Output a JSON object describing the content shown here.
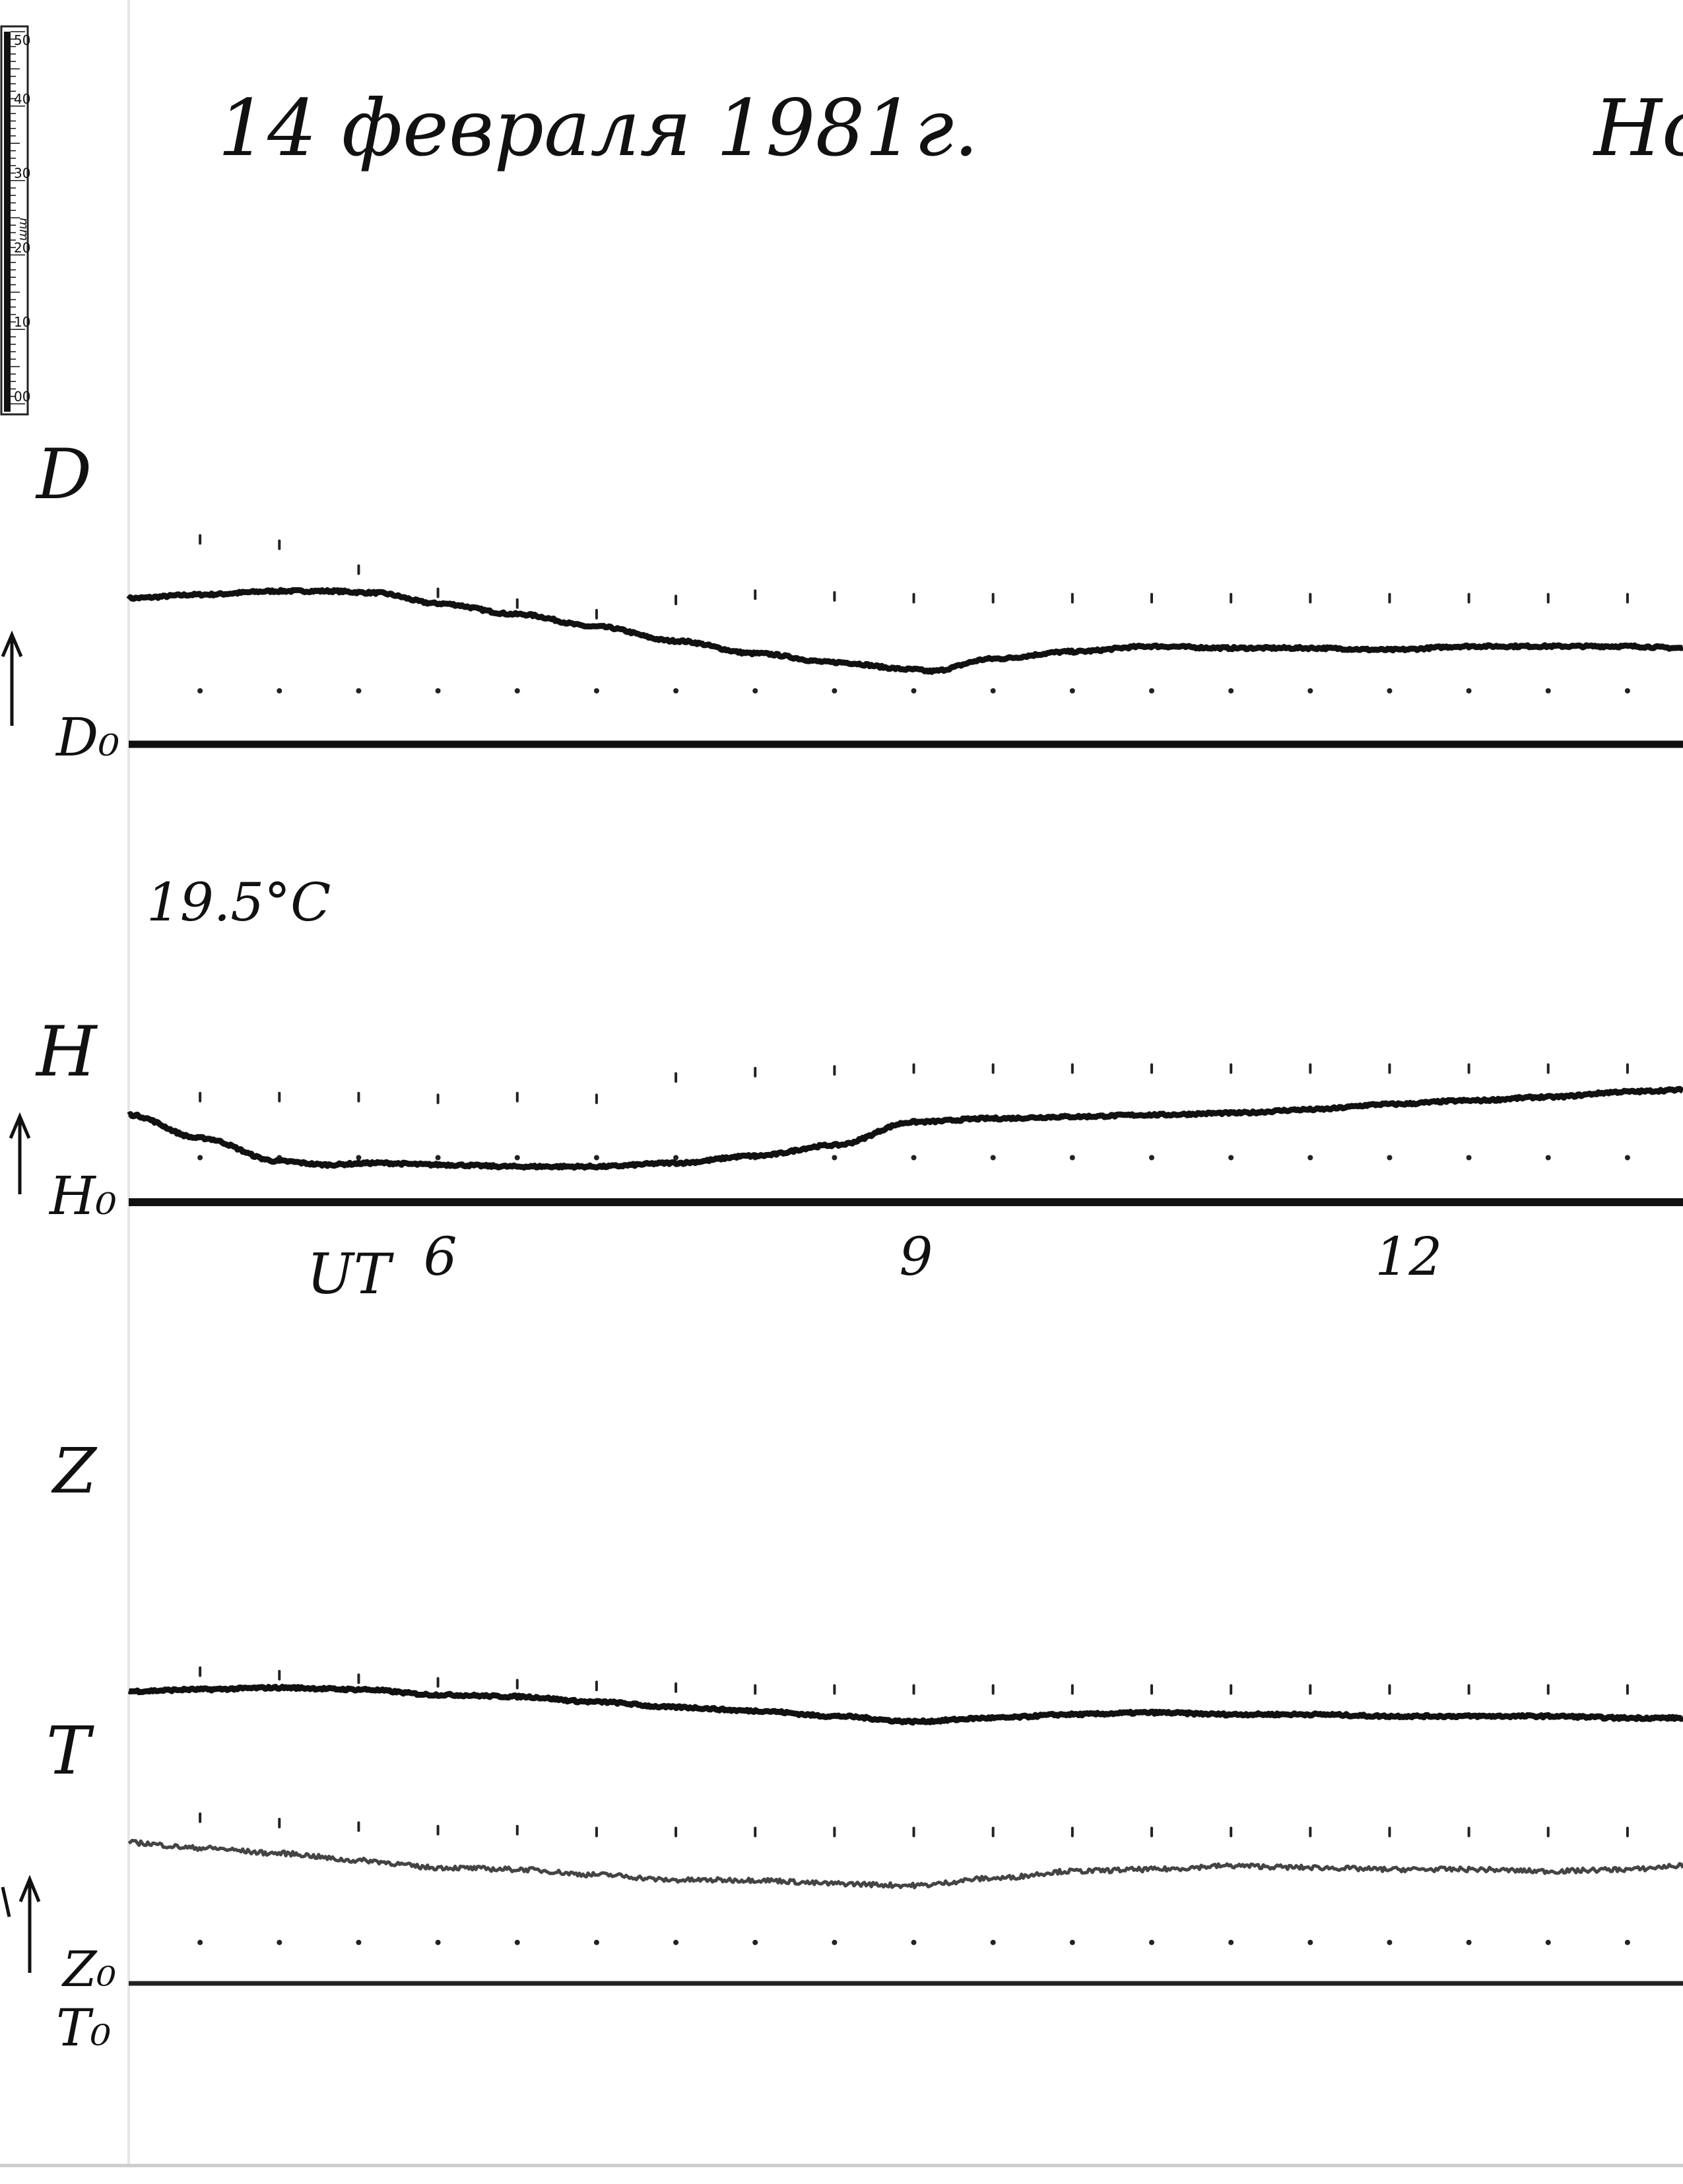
{
  "header": {
    "date_title": "14 февраля 1981г.",
    "station_fragment": "Но"
  },
  "ruler": {
    "ticks": [
      "50",
      "40",
      "30",
      "20",
      "10",
      "00"
    ],
    "unit": "mm"
  },
  "temperature_note": "19.5°C",
  "chart_data": {
    "type": "line",
    "title": "14 февраля 1981г.",
    "xlabel": "UT",
    "x_ticks": [
      {
        "label": "6",
        "hour": 6
      },
      {
        "label": "9",
        "hour": 9
      },
      {
        "label": "12",
        "hour": 12
      }
    ],
    "xlim": [
      4.05,
      13.85
    ],
    "hour_marks": [
      4.5,
      5.0,
      5.5,
      6.0,
      6.5,
      7.0,
      7.5,
      8.0,
      8.5,
      9.0,
      9.5,
      10.0,
      10.5,
      11.0,
      11.5,
      12.0,
      12.5,
      13.0,
      13.5
    ],
    "traces": [
      {
        "name": "D",
        "baseline_label": "D₀",
        "unit": "mm",
        "ylim": [
          0,
          90
        ],
        "baseline_mm": 0,
        "stroke": "#111111",
        "points": [
          [
            4.05,
            82
          ],
          [
            4.5,
            84
          ],
          [
            5.0,
            86
          ],
          [
            5.3,
            86
          ],
          [
            5.6,
            85
          ],
          [
            6.0,
            79
          ],
          [
            6.5,
            73
          ],
          [
            7.0,
            66
          ],
          [
            7.5,
            58
          ],
          [
            8.0,
            51
          ],
          [
            8.5,
            46
          ],
          [
            9.0,
            42
          ],
          [
            9.1,
            41
          ],
          [
            9.5,
            48
          ],
          [
            10.0,
            52
          ],
          [
            10.5,
            55
          ],
          [
            11.0,
            54
          ],
          [
            11.5,
            54
          ],
          [
            12.0,
            53
          ],
          [
            12.5,
            55
          ],
          [
            13.0,
            55
          ],
          [
            13.5,
            55
          ],
          [
            13.85,
            54
          ]
        ],
        "upper_marks_mm": [
          115,
          112,
          98,
          85,
          79,
          73,
          81,
          84,
          83,
          82,
          82,
          82,
          82,
          82,
          82,
          82,
          82,
          82,
          82
        ],
        "lower_marks_mm": [
          30,
          30,
          30,
          30,
          30,
          30,
          30,
          30,
          30,
          30,
          30,
          30,
          30,
          30,
          30,
          30,
          30,
          30,
          30
        ]
      },
      {
        "name": "H",
        "baseline_label": "H₀",
        "unit": "mm",
        "ylim": [
          0,
          60
        ],
        "baseline_mm": 0,
        "stroke": "#111111",
        "points": [
          [
            4.05,
            49
          ],
          [
            4.5,
            36
          ],
          [
            5.0,
            23
          ],
          [
            5.3,
            21
          ],
          [
            5.6,
            22
          ],
          [
            6.0,
            21
          ],
          [
            6.5,
            20
          ],
          [
            7.0,
            20
          ],
          [
            7.5,
            22
          ],
          [
            8.0,
            26
          ],
          [
            8.5,
            32
          ],
          [
            9.0,
            45
          ],
          [
            9.5,
            47
          ],
          [
            10.0,
            48
          ],
          [
            10.5,
            49
          ],
          [
            11.0,
            50
          ],
          [
            11.5,
            52
          ],
          [
            12.0,
            55
          ],
          [
            12.5,
            57
          ],
          [
            13.0,
            59
          ],
          [
            13.5,
            62
          ],
          [
            13.85,
            63
          ]
        ],
        "upper_marks_mm": [
          59,
          59,
          59,
          58,
          59,
          58,
          70,
          73,
          74,
          75,
          75,
          75,
          75,
          75,
          75,
          75,
          75,
          75,
          75
        ],
        "lower_marks_mm": [
          25,
          25,
          25,
          25,
          25,
          25,
          25,
          25,
          25,
          25,
          25,
          25,
          25,
          25,
          25,
          25,
          25,
          25,
          25
        ]
      },
      {
        "name": "Z",
        "baseline_label": "Z₀",
        "unit": "mm",
        "ylim": [
          0,
          180
        ],
        "baseline_mm": 0,
        "stroke": "#111111",
        "points": [
          [
            4.05,
            164
          ],
          [
            4.5,
            165
          ],
          [
            5.0,
            166
          ],
          [
            5.5,
            165
          ],
          [
            6.0,
            162
          ],
          [
            6.5,
            161
          ],
          [
            7.0,
            158
          ],
          [
            7.5,
            155
          ],
          [
            8.0,
            153
          ],
          [
            8.5,
            150
          ],
          [
            9.0,
            147
          ],
          [
            9.5,
            149
          ],
          [
            10.0,
            151
          ],
          [
            10.5,
            152
          ],
          [
            11.0,
            151
          ],
          [
            11.5,
            151
          ],
          [
            12.0,
            150
          ],
          [
            12.5,
            150
          ],
          [
            13.0,
            150
          ],
          [
            13.5,
            149
          ],
          [
            13.85,
            149
          ]
        ],
        "upper_marks_mm": [
          175,
          173,
          171,
          169,
          168,
          167,
          166,
          165,
          165,
          165,
          165,
          165,
          165,
          165,
          165,
          165,
          165,
          165,
          165
        ],
        "lower_marks_mm": null
      },
      {
        "name": "T",
        "baseline_label": "T₀",
        "unit": "mm",
        "ylim": [
          0,
          180
        ],
        "baseline_mm": 0,
        "stroke": "#444444",
        "points": [
          [
            4.05,
            79
          ],
          [
            4.5,
            76
          ],
          [
            5.0,
            73
          ],
          [
            5.5,
            69
          ],
          [
            6.0,
            65
          ],
          [
            6.5,
            64
          ],
          [
            7.0,
            61
          ],
          [
            7.5,
            58
          ],
          [
            8.0,
            58
          ],
          [
            8.5,
            56
          ],
          [
            9.0,
            55
          ],
          [
            9.5,
            59
          ],
          [
            10.0,
            63
          ],
          [
            10.5,
            64
          ],
          [
            11.0,
            66
          ],
          [
            11.5,
            65
          ],
          [
            12.0,
            64
          ],
          [
            12.5,
            64
          ],
          [
            13.0,
            63
          ],
          [
            13.5,
            64
          ],
          [
            13.85,
            66
          ]
        ],
        "upper_marks_mm": [
          93,
          90,
          88,
          86,
          86,
          85,
          85,
          85,
          85,
          85,
          85,
          85,
          85,
          85,
          85,
          85,
          85,
          85,
          85
        ],
        "lower_marks_mm": [
          23,
          23,
          23,
          23,
          23,
          23,
          23,
          23,
          23,
          23,
          23,
          23,
          23,
          23,
          23,
          23,
          23,
          23,
          23
        ]
      }
    ],
    "grid": false,
    "legend": "none"
  }
}
